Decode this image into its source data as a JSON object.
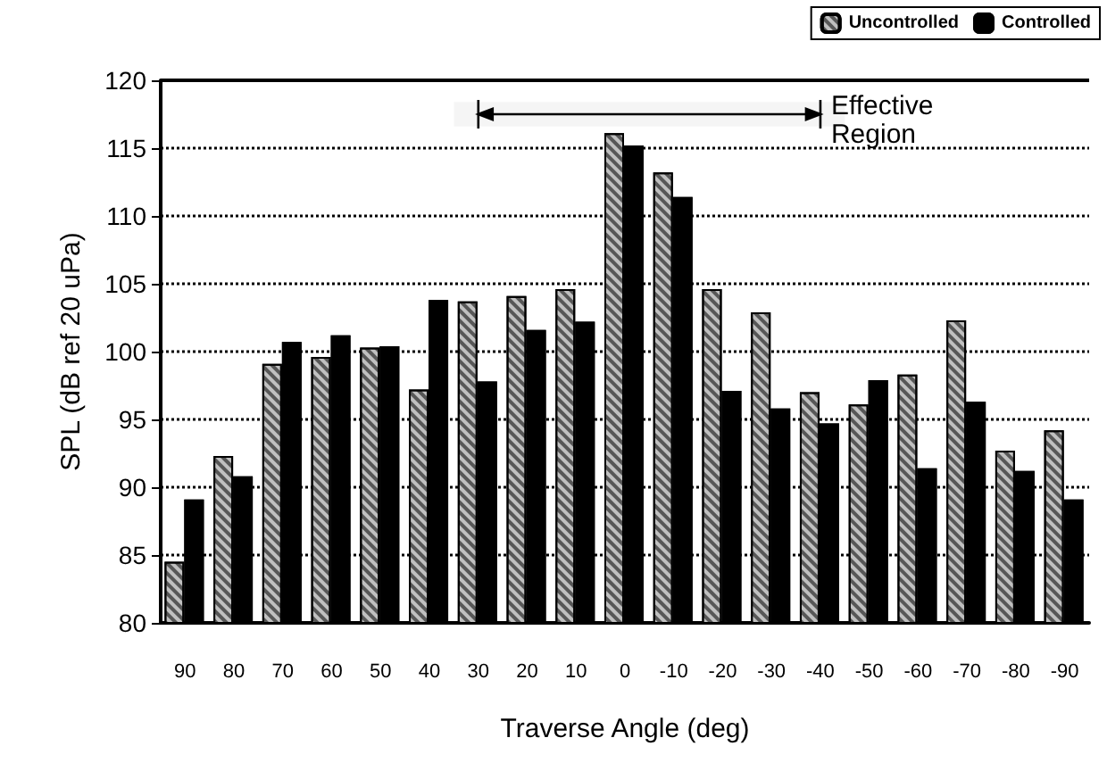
{
  "chart_data": {
    "type": "bar",
    "xlabel": "Traverse Angle (deg)",
    "ylabel": "SPL (dB ref 20 uPa)",
    "categories": [
      "90",
      "80",
      "70",
      "60",
      "50",
      "40",
      "30",
      "20",
      "10",
      "0",
      "-10",
      "-20",
      "-30",
      "-40",
      "-50",
      "-60",
      "-70",
      "-80",
      "-90"
    ],
    "series": [
      {
        "name": "Uncontrolled",
        "color": "#c0c0c0",
        "values": [
          84.5,
          92.3,
          99.1,
          99.6,
          100.3,
          97.2,
          103.7,
          104.1,
          104.6,
          116.1,
          113.2,
          104.6,
          102.9,
          97.0,
          96.1,
          98.3,
          102.3,
          92.7,
          94.2
        ]
      },
      {
        "name": "Controlled",
        "color": "#000000",
        "values": [
          89.1,
          90.8,
          100.7,
          101.2,
          100.4,
          103.8,
          97.8,
          101.6,
          102.2,
          115.2,
          111.4,
          97.1,
          95.8,
          94.7,
          97.9,
          91.4,
          96.3,
          91.2,
          89.1
        ]
      }
    ],
    "ylim": [
      80,
      120
    ],
    "yticks": [
      80,
      85,
      90,
      95,
      100,
      105,
      110,
      115,
      120
    ],
    "grid": "y",
    "legend": "top right",
    "bands": [
      {
        "axis": "x",
        "from": "30",
        "to": "-40",
        "label": "Effective Region"
      }
    ]
  }
}
